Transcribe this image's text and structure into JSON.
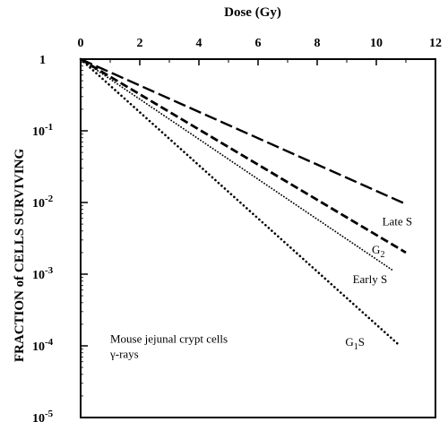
{
  "chart_data": {
    "type": "line",
    "xlabel": "Dose (Gy)",
    "ylabel": "FRACTION of CELLS SURVIVING",
    "xlim": [
      0,
      12
    ],
    "ylim": [
      1e-05,
      1
    ],
    "yscale": "log",
    "x_axis_position": "top",
    "grid": false,
    "legend": "none",
    "x_ticks": [
      {
        "value": 0,
        "label": "0"
      },
      {
        "value": 2,
        "label": "2"
      },
      {
        "value": 4,
        "label": "4"
      },
      {
        "value": 6,
        "label": "6"
      },
      {
        "value": 8,
        "label": "8"
      },
      {
        "value": 10,
        "label": "10"
      },
      {
        "value": 12,
        "label": "12"
      }
    ],
    "y_ticks": [
      {
        "value": 1,
        "base": "1",
        "exp": ""
      },
      {
        "value": 0.1,
        "base": "10",
        "exp": "-1"
      },
      {
        "value": 0.01,
        "base": "10",
        "exp": "-2"
      },
      {
        "value": 0.001,
        "base": "10",
        "exp": "-3"
      },
      {
        "value": 0.0001,
        "base": "10",
        "exp": "-4"
      },
      {
        "value": 1e-05,
        "base": "10",
        "exp": "-5"
      }
    ],
    "series": [
      {
        "name": "Late S",
        "label_base": "Late S",
        "label_sub": "",
        "style": "long-dash",
        "x": [
          0,
          11
        ],
        "y": [
          1,
          0.0095
        ],
        "label_at": [
          10.2,
          0.0048
        ]
      },
      {
        "name": "G2",
        "label_base": "G",
        "label_sub": "2",
        "style": "dash",
        "x": [
          0,
          11
        ],
        "y": [
          1,
          0.002
        ],
        "label_at": [
          9.85,
          0.00195
        ]
      },
      {
        "name": "Early S",
        "label_base": "Early S",
        "label_sub": "",
        "style": "fine-dot",
        "x": [
          0,
          10.6
        ],
        "y": [
          1,
          0.0011
        ],
        "label_at": [
          9.2,
          0.00075
        ]
      },
      {
        "name": "G1S",
        "label_base": "G",
        "label_sub": "1",
        "label_tail": "S",
        "style": "dot",
        "x": [
          0,
          10.8
        ],
        "y": [
          1,
          0.0001
        ],
        "label_at": [
          8.95,
          0.0001
        ]
      }
    ],
    "annotation": [
      "Mouse jejunal crypt cells",
      "γ-rays"
    ],
    "annotation_at": [
      1.0,
      0.00011
    ]
  },
  "colors": {
    "ink": "#000000",
    "background": "#ffffff"
  }
}
